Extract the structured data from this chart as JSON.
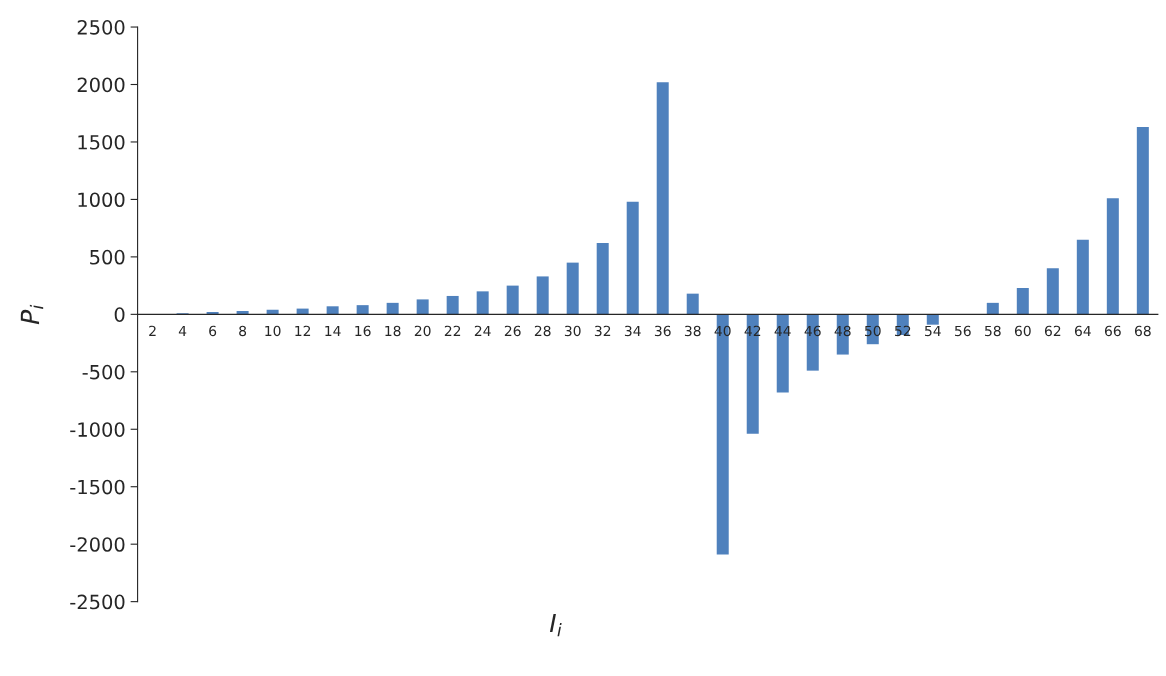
{
  "chart_data": {
    "type": "bar",
    "xlabel": "I$_{i}$",
    "ylabel": "P$_{i}$",
    "categories": [
      "2",
      "4",
      "6",
      "8",
      "10",
      "12",
      "14",
      "16",
      "18",
      "20",
      "22",
      "24",
      "26",
      "28",
      "30",
      "32",
      "34",
      "36",
      "38",
      "40",
      "42",
      "44",
      "46",
      "48",
      "50",
      "52",
      "54",
      "56",
      "58",
      "60",
      "62",
      "64",
      "66",
      "68"
    ],
    "values": [
      0,
      10,
      20,
      30,
      40,
      50,
      70,
      80,
      100,
      130,
      160,
      200,
      250,
      330,
      450,
      620,
      980,
      2020,
      180,
      -2090,
      -1040,
      -680,
      -490,
      -350,
      -260,
      -180,
      -90,
      0,
      100,
      230,
      400,
      650,
      1010,
      1630
    ],
    "color": "#4f81bd",
    "ylim": [
      -2500,
      2500
    ],
    "yticks": [
      -2500,
      -2000,
      -1500,
      -1000,
      -500,
      0,
      500,
      1000,
      1500,
      2000,
      2500
    ],
    "grid": false,
    "legend": false
  }
}
